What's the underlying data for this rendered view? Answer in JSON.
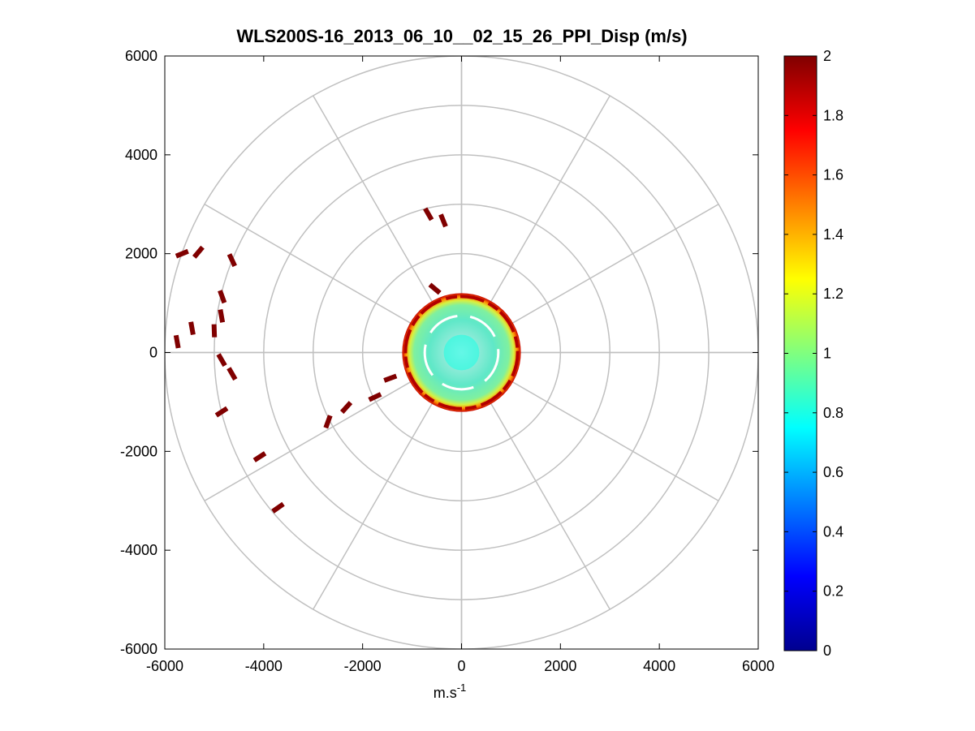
{
  "chart_data": {
    "type": "heatmap",
    "subtype": "polar-ppi",
    "title": "WLS200S-16_2013_06_10__02_15_26_PPI_Disp (m/s)",
    "xlabel": "m.s",
    "xlabel_superscript": "-1",
    "ylabel": "",
    "xlim": [
      -6000,
      6000
    ],
    "ylim": [
      -6000,
      6000
    ],
    "xticks": [
      -6000,
      -4000,
      -2000,
      0,
      2000,
      4000,
      6000
    ],
    "yticks": [
      6000,
      4000,
      2000,
      0,
      -2000,
      -4000,
      -6000
    ],
    "xtick_labels": [
      "-6000",
      "-4000",
      "-2000",
      "0",
      "2000",
      "4000",
      "6000"
    ],
    "ytick_labels": [
      "6000",
      "4000",
      "2000",
      "0",
      "-2000",
      "-4000",
      "-6000"
    ],
    "polar_rings": [
      1000,
      2000,
      3000,
      4000,
      5000,
      6000
    ],
    "polar_spokes_deg": [
      0,
      30,
      60,
      90,
      120,
      150,
      180,
      210,
      240,
      270,
      300,
      330
    ],
    "colorbar": {
      "colormap": "jet",
      "range": [
        0,
        2
      ],
      "ticks": [
        0,
        0.2,
        0.4,
        0.6,
        0.8,
        1,
        1.2,
        1.4,
        1.6,
        1.8,
        2
      ],
      "tick_labels": [
        "0",
        "0.2",
        "0.4",
        "0.6",
        "0.8",
        "1",
        "1.2",
        "1.4",
        "1.6",
        "1.8",
        "2"
      ]
    },
    "central_region": {
      "radius_max": 1200,
      "typical_value": 0.8,
      "rim_value": 1.9
    },
    "outlier_patches": [
      {
        "x": 350,
        "y": 4000,
        "angle": -22,
        "value": 2
      },
      {
        "x": 680,
        "y": 3970,
        "angle": -50,
        "value": 2
      },
      {
        "x": 1160,
        "y": 4870,
        "angle": 70,
        "value": 2
      },
      {
        "x": 1360,
        "y": 4130,
        "angle": 65,
        "value": 2
      },
      {
        "x": 250,
        "y": 5780,
        "angle": 80,
        "value": 2
      },
      {
        "x": 550,
        "y": 5510,
        "angle": 80,
        "value": 2
      },
      {
        "x": 1000,
        "y": 5560,
        "angle": 88,
        "value": 2
      },
      {
        "x": 1145,
        "y": 5260,
        "angle": 80,
        "value": 2
      },
      {
        "x": 1150,
        "y": 6150,
        "angle": 60,
        "value": 2
      },
      {
        "x": 1360,
        "y": 6430,
        "angle": 60,
        "value": 2
      },
      {
        "x": 1150,
        "y": 7200,
        "angle": -33,
        "value": 2
      },
      {
        "x": 1920,
        "y": 8110,
        "angle": -33,
        "value": 2
      },
      {
        "x": 2290,
        "y": 9140,
        "angle": -35,
        "value": 2
      },
      {
        "x": 3300,
        "y": 7400,
        "angle": -70,
        "value": 2
      },
      {
        "x": 3670,
        "y": 7110,
        "angle": -48,
        "value": 2
      },
      {
        "x": 4250,
        "y": 6900,
        "angle": -25,
        "value": 2
      },
      {
        "x": 4560,
        "y": 6520,
        "angle": -20,
        "value": 2
      },
      {
        "x": 5330,
        "y": 3200,
        "angle": 60,
        "value": 2
      },
      {
        "x": 5630,
        "y": 3330,
        "angle": 68,
        "value": 2
      },
      {
        "x": 5460,
        "y": 4710,
        "angle": 40,
        "value": 2
      }
    ]
  }
}
